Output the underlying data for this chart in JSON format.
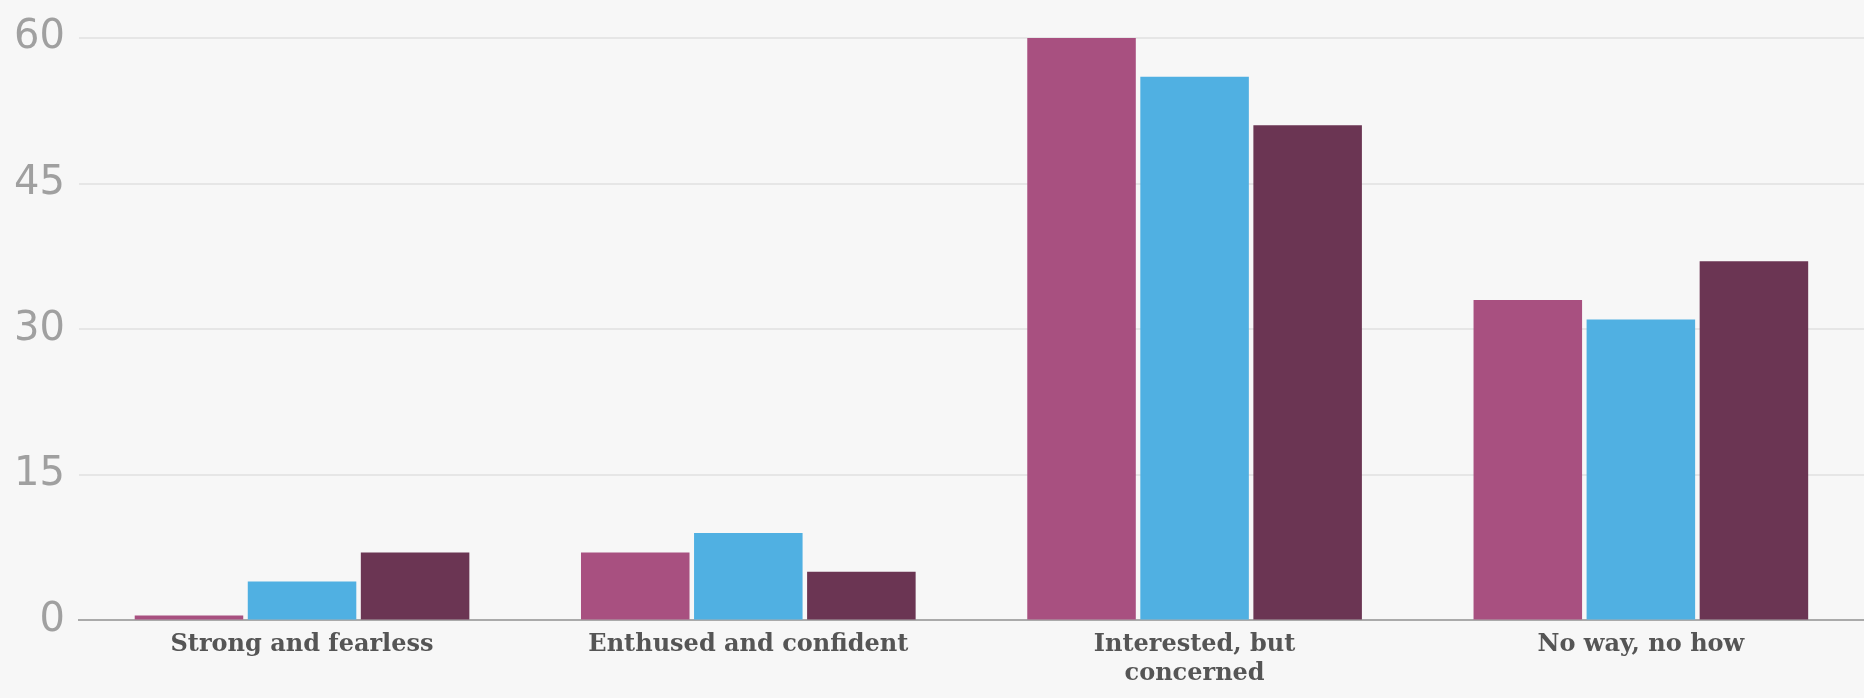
{
  "chart_data": {
    "type": "bar",
    "categories": [
      "Strong and fearless",
      "Enthused and confident",
      "Interested, but concerned",
      "No way, no how"
    ],
    "series": [
      {
        "color": "#a85080",
        "values": [
          0.5,
          7,
          60,
          33
        ]
      },
      {
        "color": "#50b0e2",
        "values": [
          4,
          9,
          56,
          31
        ]
      },
      {
        "color": "#6b3553",
        "values": [
          7,
          5,
          51,
          37
        ]
      }
    ],
    "ylim": [
      0,
      60
    ],
    "yticks": [
      0,
      15,
      30,
      45,
      60
    ],
    "grid": "y",
    "legend": false
  }
}
